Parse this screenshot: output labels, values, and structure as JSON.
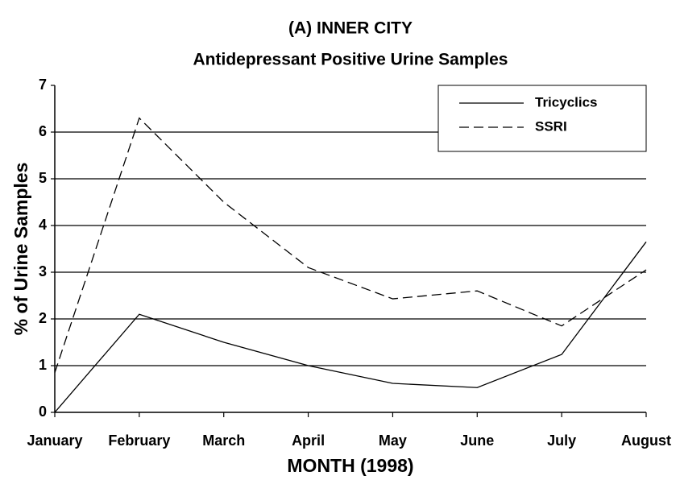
{
  "chart_data": {
    "type": "line",
    "title": "(A) INNER CITY",
    "subtitle": "Antidepressant Positive Urine Samples",
    "x_label": "MONTH (1998)",
    "y_label": "% of Urine Samples",
    "categories": [
      "January",
      "February",
      "March",
      "April",
      "May",
      "June",
      "July",
      "August"
    ],
    "series": [
      {
        "name": "Tricyclics",
        "color": "#000000",
        "style": "solid",
        "values": [
          0,
          2.1,
          1.5,
          1.0,
          0.62,
          0.53,
          1.24,
          3.65
        ]
      },
      {
        "name": "SSRI",
        "color": "#000000",
        "style": "dashed",
        "values": [
          0.85,
          6.3,
          4.5,
          3.1,
          2.43,
          2.6,
          1.85,
          3.05
        ]
      }
    ],
    "ylim": [
      0,
      7
    ],
    "yticks": [
      0,
      1,
      2,
      3,
      4,
      5,
      6,
      7
    ],
    "grid": true,
    "legend": "upper-right"
  }
}
